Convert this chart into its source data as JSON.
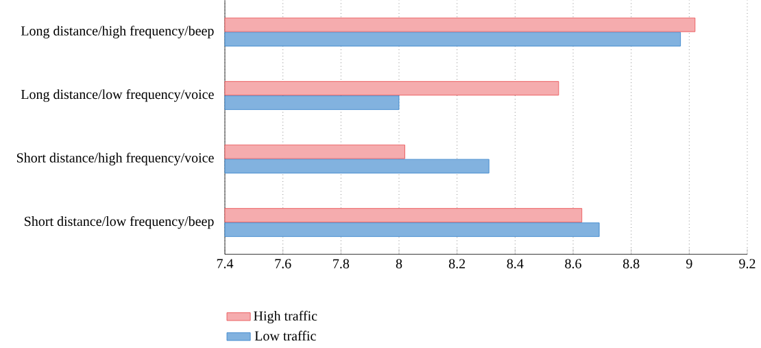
{
  "chart_data": {
    "type": "bar",
    "orientation": "horizontal",
    "categories": [
      "Long distance/high frequency/beep",
      "Long distance/low frequency/voice",
      "Short distance/high frequency/voice",
      "Short distance/low frequency/beep"
    ],
    "series": [
      {
        "name": "High traffic",
        "color": "#e8474a",
        "values": [
          9.02,
          8.55,
          8.02,
          8.63
        ]
      },
      {
        "name": "Low traffic",
        "color": "#2f7fc9",
        "values": [
          8.97,
          8.0,
          8.31,
          8.69
        ]
      }
    ],
    "xlim": [
      7.4,
      9.2
    ],
    "xticks": [
      7.4,
      7.6,
      7.8,
      8,
      8.2,
      8.4,
      8.6,
      8.8,
      9,
      9.2
    ],
    "grid": "x",
    "legend": "bottom left"
  }
}
